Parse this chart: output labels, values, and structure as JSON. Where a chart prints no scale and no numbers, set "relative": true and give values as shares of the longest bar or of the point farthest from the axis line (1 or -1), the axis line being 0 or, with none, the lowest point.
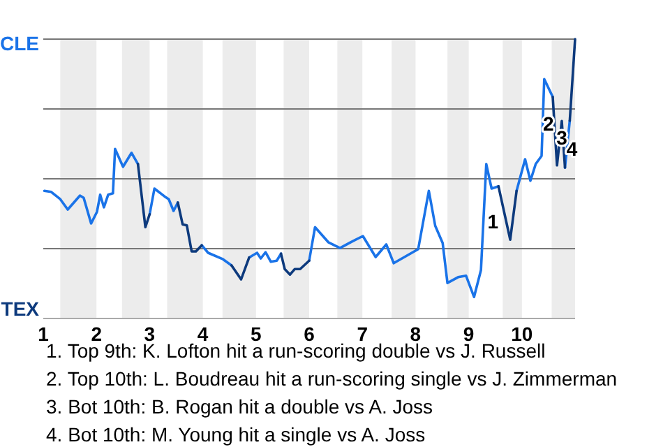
{
  "chart_data": {
    "type": "line",
    "relative": true,
    "xlim": [
      1,
      11
    ],
    "xticks": [
      1,
      2,
      3,
      4,
      5,
      6,
      7,
      8,
      9,
      10
    ],
    "grid": "y",
    "marker": "none",
    "line_style": "solid",
    "bands": [
      {
        "axis": "x",
        "from": 1.32,
        "to": 2,
        "color": "#ececec"
      },
      {
        "axis": "x",
        "from": 2.48,
        "to": 3,
        "color": "#ececec"
      },
      {
        "axis": "x",
        "from": 3.33,
        "to": 4,
        "color": "#ececec"
      },
      {
        "axis": "x",
        "from": 4.37,
        "to": 5,
        "color": "#ececec"
      },
      {
        "axis": "x",
        "from": 5.52,
        "to": 6,
        "color": "#ececec"
      },
      {
        "axis": "x",
        "from": 6.53,
        "to": 7,
        "color": "#ececec"
      },
      {
        "axis": "x",
        "from": 7.55,
        "to": 8,
        "color": "#ececec"
      },
      {
        "axis": "x",
        "from": 8.6,
        "to": 9,
        "color": "#ececec"
      },
      {
        "axis": "x",
        "from": 9.64,
        "to": 10,
        "color": "#ececec"
      },
      {
        "axis": "x",
        "from": 10.56,
        "to": 11,
        "color": "#ececec"
      }
    ],
    "series": [
      {
        "color": "#1a73e8",
        "x": [
          1.02,
          1.15,
          1.32,
          1.46,
          1.69,
          1.76,
          1.9,
          2.01,
          2.07,
          2.14,
          2.22,
          2.31,
          2.35,
          2.5,
          2.66,
          2.78,
          null,
          3,
          3.09,
          3.28,
          3.36,
          3.45,
          3.53,
          null,
          3.98,
          4.1,
          4.38,
          4.54,
          null,
          4.87,
          5.02,
          5.09,
          5.18,
          5.28,
          5.39,
          5.47,
          null,
          6,
          6.11,
          6.36,
          6.58,
          6.78,
          7.01,
          7.25,
          7.45,
          7.59,
          7.82,
          8.05,
          8.25,
          8.37,
          8.51,
          8.6,
          8.8,
          8.95,
          9.1,
          9.23,
          9.33,
          9.43,
          9.56,
          null,
          9.9,
          10.06,
          10.16,
          10.26,
          10.37,
          10.42,
          10.58,
          null,
          10.81,
          10.9
        ],
        "values": [
          0.457,
          0.453,
          0.427,
          0.39,
          0.44,
          0.432,
          0.34,
          0.382,
          0.443,
          0.398,
          0.443,
          0.448,
          0.607,
          0.543,
          0.593,
          0.553,
          null,
          0.373,
          0.465,
          0.437,
          0.427,
          0.385,
          0.415,
          null,
          0.262,
          0.235,
          0.212,
          0.19,
          null,
          0.218,
          0.235,
          0.215,
          0.237,
          0.203,
          0.207,
          0.232,
          null,
          0.207,
          0.327,
          0.273,
          0.252,
          0.273,
          0.295,
          0.22,
          0.265,
          0.198,
          0.223,
          0.248,
          0.457,
          0.332,
          0.27,
          0.127,
          0.148,
          0.153,
          0.077,
          0.173,
          0.553,
          0.465,
          0.473,
          null,
          0.457,
          0.57,
          0.493,
          0.553,
          0.582,
          0.857,
          0.793,
          null,
          0.54,
          0.708
        ]
      },
      {
        "color": "#0d3a7d",
        "x": [
          2.78,
          2.92,
          3,
          null,
          3.53,
          3.62,
          3.7,
          3.79,
          3.87,
          3.98,
          null,
          4.54,
          4.72,
          4.87,
          null,
          5.47,
          5.54,
          5.64,
          5.73,
          5.83,
          6,
          null,
          9.56,
          9.78,
          9.9,
          null,
          10.58,
          10.66,
          10.75,
          10.81,
          null,
          10.9,
          11
        ],
        "values": [
          0.553,
          0.327,
          0.373,
          null,
          0.415,
          0.337,
          0.333,
          0.24,
          0.24,
          0.262,
          null,
          0.19,
          0.14,
          0.218,
          null,
          0.232,
          0.177,
          0.157,
          0.177,
          0.177,
          0.207,
          null,
          0.473,
          0.282,
          0.457,
          null,
          0.793,
          0.548,
          0.707,
          0.54,
          null,
          0.708,
          1
        ]
      }
    ],
    "annotations": [
      "CLE",
      "TEX",
      {
        "text": "1",
        "x": 9.27,
        "y": 0.34
      },
      {
        "text": "2",
        "x": 10.5,
        "y": 0.69
      },
      {
        "text": "3",
        "x": 10.75,
        "y": 0.64
      },
      {
        "text": "4",
        "x": 10.94,
        "y": 0.6
      },
      "1. Top 9th: K. Lofton hit a run-scoring double vs J. Russell",
      "2. Top 10th: L. Boudreau hit a run-scoring single vs J. Zimmerman",
      "3. Bot 10th: B. Rogan hit a double vs A. Joss",
      "4. Bot 10th: M. Young hit a single vs A. Joss"
    ]
  }
}
